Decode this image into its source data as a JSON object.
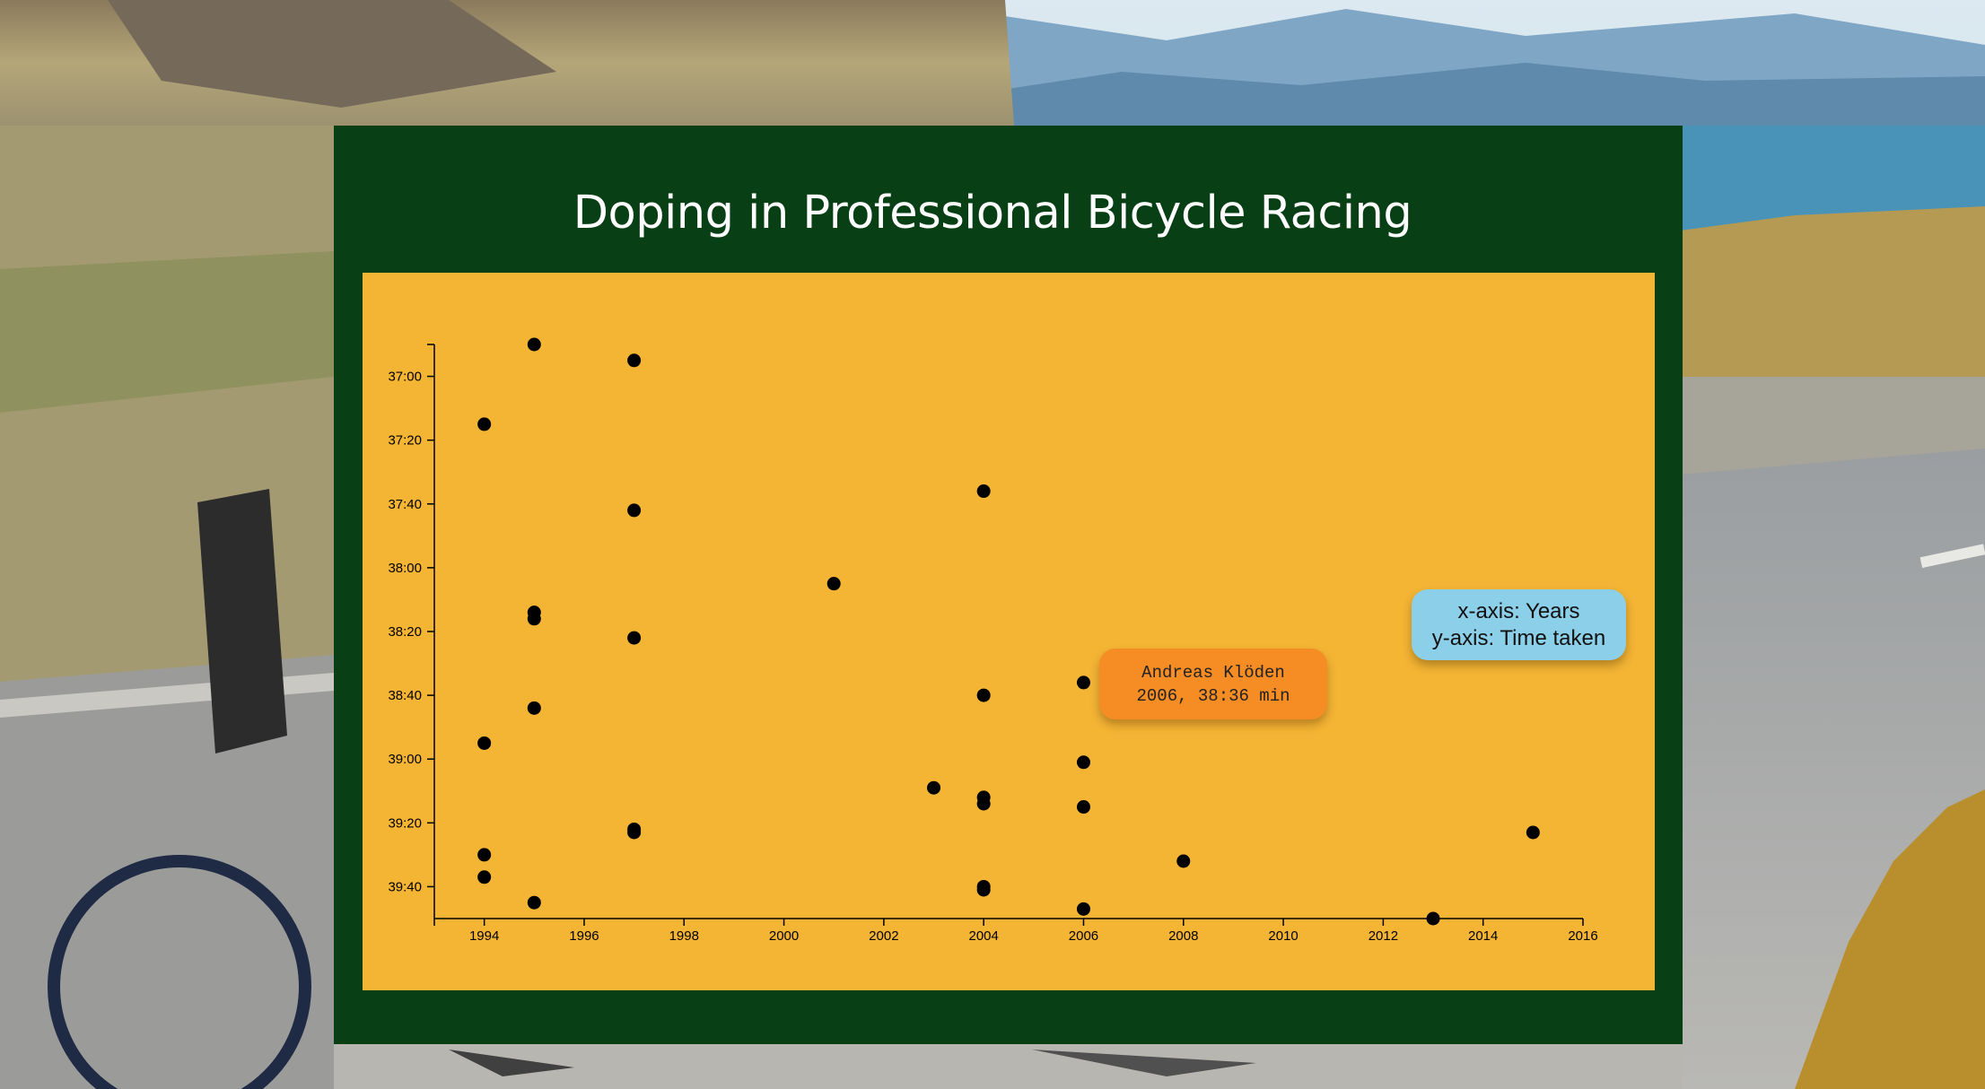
{
  "page": {
    "title": "Doping in Professional Bicycle Racing"
  },
  "tooltip": {
    "line1": "Andreas Klöden",
    "line2": "2006, 38:36 min"
  },
  "legend": {
    "line1": "x-axis: Years",
    "line2": "y-axis: Time taken"
  },
  "colors": {
    "panel": "#093f15",
    "plot_background": "#f4b434",
    "dot": "#000000",
    "tooltip": "#f58c24",
    "legend": "#8ccfe8"
  },
  "chart_data": {
    "type": "scatter",
    "title": "Doping in Professional Bicycle Racing",
    "xlabel": "",
    "ylabel": "",
    "xlim": [
      1993,
      2016
    ],
    "ylim_seconds": [
      2210,
      2390
    ],
    "y_inverted": true,
    "x_ticks": [
      "1994",
      "1996",
      "1998",
      "2000",
      "2002",
      "2004",
      "2006",
      "2008",
      "2010",
      "2012",
      "2014",
      "2016"
    ],
    "y_ticks": [
      "37:00",
      "37:20",
      "37:40",
      "38:00",
      "38:20",
      "38:40",
      "39:00",
      "39:20",
      "39:40"
    ],
    "points": [
      {
        "x": 1995,
        "y": "36:50"
      },
      {
        "x": 1997,
        "y": "36:55"
      },
      {
        "x": 1994,
        "y": "37:15"
      },
      {
        "x": 2004,
        "y": "37:36"
      },
      {
        "x": 1997,
        "y": "37:42"
      },
      {
        "x": 2001,
        "y": "38:05"
      },
      {
        "x": 1995,
        "y": "38:14"
      },
      {
        "x": 1995,
        "y": "38:16"
      },
      {
        "x": 1997,
        "y": "38:22"
      },
      {
        "x": 2006,
        "y": "38:36"
      },
      {
        "x": 2004,
        "y": "38:40"
      },
      {
        "x": 1995,
        "y": "38:44"
      },
      {
        "x": 1994,
        "y": "38:55"
      },
      {
        "x": 2006,
        "y": "39:01"
      },
      {
        "x": 2003,
        "y": "39:09"
      },
      {
        "x": 2004,
        "y": "39:12"
      },
      {
        "x": 2004,
        "y": "39:14"
      },
      {
        "x": 2006,
        "y": "39:15"
      },
      {
        "x": 1997,
        "y": "39:22"
      },
      {
        "x": 1997,
        "y": "39:23"
      },
      {
        "x": 2015,
        "y": "39:23"
      },
      {
        "x": 1994,
        "y": "39:30"
      },
      {
        "x": 2008,
        "y": "39:32"
      },
      {
        "x": 1994,
        "y": "39:37"
      },
      {
        "x": 2004,
        "y": "39:40"
      },
      {
        "x": 2004,
        "y": "39:41"
      },
      {
        "x": 1995,
        "y": "39:45"
      },
      {
        "x": 2006,
        "y": "39:47"
      },
      {
        "x": 2013,
        "y": "39:50"
      }
    ]
  }
}
